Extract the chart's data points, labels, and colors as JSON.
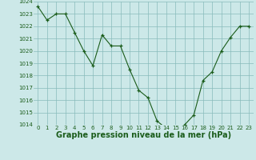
{
  "x": [
    0,
    1,
    2,
    3,
    4,
    5,
    6,
    7,
    8,
    9,
    10,
    11,
    12,
    13,
    14,
    15,
    16,
    17,
    18,
    19,
    20,
    21,
    22,
    23
  ],
  "y": [
    1023.6,
    1022.5,
    1023.0,
    1023.0,
    1021.5,
    1020.0,
    1018.8,
    1021.3,
    1020.4,
    1020.4,
    1018.5,
    1016.8,
    1016.2,
    1014.3,
    1013.7,
    1013.7,
    1014.0,
    1014.8,
    1017.6,
    1018.3,
    1020.0,
    1021.1,
    1022.0,
    1022.0
  ],
  "ylim": [
    1014,
    1024
  ],
  "xlim": [
    -0.5,
    23.5
  ],
  "yticks": [
    1014,
    1015,
    1016,
    1017,
    1018,
    1019,
    1020,
    1021,
    1022,
    1023,
    1024
  ],
  "xticks": [
    0,
    1,
    2,
    3,
    4,
    5,
    6,
    7,
    8,
    9,
    10,
    11,
    12,
    13,
    14,
    15,
    16,
    17,
    18,
    19,
    20,
    21,
    22,
    23
  ],
  "line_color": "#1a5c1a",
  "marker": "+",
  "bg_color": "#cce8e8",
  "grid_color": "#88bbbb",
  "xlabel": "Graphe pression niveau de la mer (hPa)",
  "xlabel_color": "#1a5c1a",
  "tick_color": "#1a5c1a",
  "tick_fontsize": 5.0,
  "xlabel_fontsize": 7.0
}
